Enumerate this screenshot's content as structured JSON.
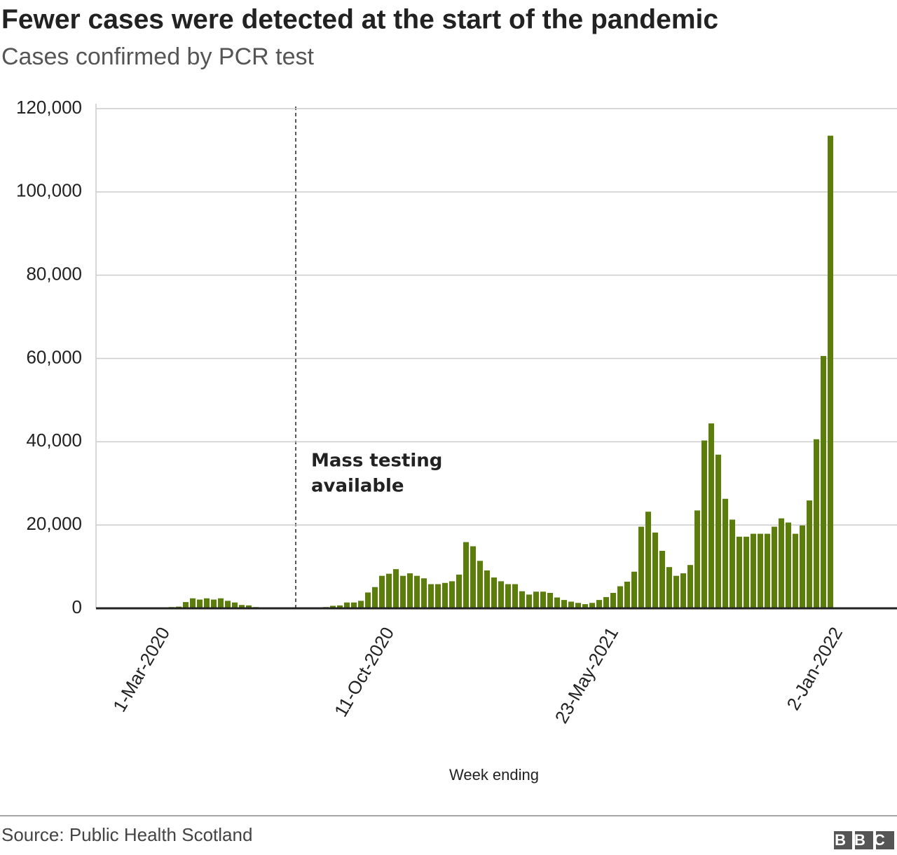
{
  "chart_data": {
    "type": "bar",
    "title": "Fewer cases were detected at the start of the pandemic",
    "subtitle": "Cases confirmed by PCR test",
    "x_label": "Week ending",
    "annotation": [
      "Mass testing",
      "available"
    ],
    "source": "Source: Public Health Scotland",
    "logo": "BBC",
    "color": "#5b7d09",
    "grid": true,
    "ylim": [
      0,
      120000
    ],
    "yticks": [
      0,
      {
        "value": 20000,
        "label": "20,000"
      },
      {
        "value": 40000,
        "label": "40,000"
      },
      {
        "value": 60000,
        "label": "60,000"
      },
      {
        "value": 80000,
        "label": "80,000"
      },
      {
        "value": 100000,
        "label": "100,000"
      },
      {
        "value": 120000,
        "label": "120,000"
      }
    ],
    "categories": [
      null,
      null,
      null,
      null,
      null,
      null,
      null,
      null,
      "1-Mar-2020",
      null,
      null,
      null,
      null,
      null,
      null,
      null,
      null,
      null,
      null,
      null,
      null,
      null,
      null,
      null,
      null,
      null,
      null,
      null,
      null,
      null,
      null,
      null,
      null,
      null,
      null,
      null,
      null,
      null,
      null,
      null,
      "11-Oct-2020",
      null,
      null,
      null,
      null,
      null,
      null,
      null,
      null,
      null,
      null,
      null,
      null,
      null,
      null,
      null,
      null,
      null,
      null,
      null,
      null,
      null,
      null,
      null,
      null,
      null,
      null,
      null,
      null,
      null,
      null,
      null,
      "23-May-2021",
      null,
      null,
      null,
      null,
      null,
      null,
      null,
      null,
      null,
      null,
      null,
      null,
      null,
      null,
      null,
      null,
      null,
      null,
      null,
      null,
      null,
      null,
      null,
      null,
      null,
      null,
      null,
      null,
      null,
      null,
      null,
      "2-Jan-2022"
    ],
    "values": [
      0,
      0,
      0,
      0,
      0,
      0,
      0,
      0,
      0,
      0,
      300,
      400,
      1500,
      2400,
      2100,
      2400,
      2100,
      2400,
      1800,
      1400,
      800,
      700,
      300,
      100,
      0,
      0,
      0,
      0,
      0,
      0,
      0,
      200,
      300,
      600,
      700,
      1400,
      1400,
      1800,
      3800,
      5100,
      7800,
      8300,
      9400,
      7800,
      8400,
      7800,
      7200,
      5800,
      5800,
      6100,
      6500,
      8100,
      15900,
      14900,
      11400,
      9100,
      7400,
      6500,
      5800,
      5800,
      4100,
      3300,
      4000,
      4000,
      3700,
      2600,
      2000,
      1600,
      1300,
      1000,
      1300,
      2000,
      2700,
      3700,
      5300,
      6400,
      8800,
      19600,
      23200,
      18200,
      13800,
      9900,
      7800,
      8400,
      10400,
      23500,
      40300,
      44400,
      36900,
      26300,
      21300,
      17200,
      17200,
      17900,
      17900,
      17900,
      19600,
      21600,
      20600,
      17900,
      19900,
      25900,
      40600,
      60600,
      113500
    ]
  }
}
